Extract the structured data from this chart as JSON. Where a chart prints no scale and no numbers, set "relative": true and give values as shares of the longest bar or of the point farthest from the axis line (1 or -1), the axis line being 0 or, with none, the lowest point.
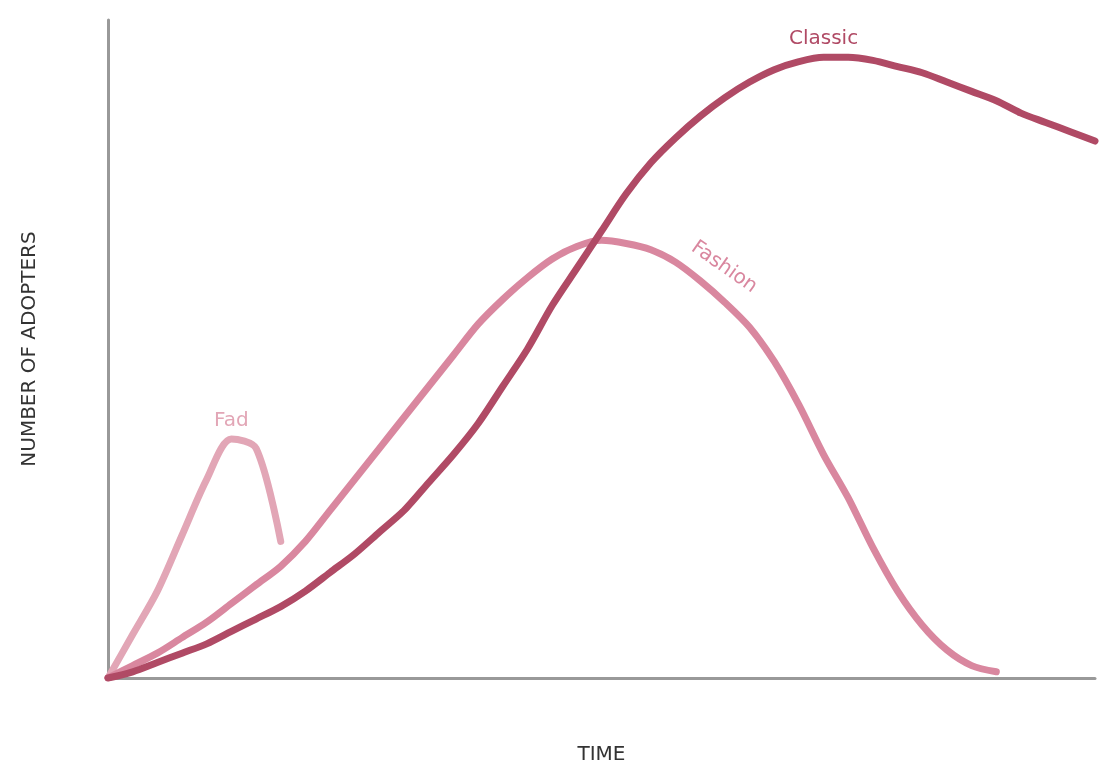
{
  "chart_data": {
    "type": "line",
    "relative": true,
    "xlabel": "TIME",
    "ylabel": "NUMBER OF ADOPTERS",
    "grid": false,
    "legend": false,
    "marker": "none",
    "line_style": "solid",
    "categories": [
      null,
      null,
      null,
      null,
      null,
      null,
      null,
      null,
      null,
      null,
      null,
      null,
      null,
      null,
      null,
      null,
      null,
      null,
      null,
      null,
      null,
      null,
      null,
      null,
      null,
      null,
      null,
      null,
      null,
      null,
      null,
      null,
      null,
      null,
      null,
      null,
      null,
      null,
      null,
      null,
      null
    ],
    "series": [
      {
        "name": "Fad",
        "color": "#e2a6b6",
        "values": [
          0,
          0.07,
          0.14,
          0.23,
          0.32,
          0.385,
          0.37,
          0.22,
          null,
          null,
          null,
          null,
          null,
          null,
          null,
          null,
          null,
          null,
          null,
          null,
          null,
          null,
          null,
          null,
          null,
          null,
          null,
          null,
          null,
          null,
          null,
          null,
          null,
          null,
          null,
          null,
          null,
          null,
          null,
          null,
          null
        ]
      },
      {
        "name": "Fashion",
        "color": "#d9879f",
        "values": [
          0,
          0.02,
          0.04,
          0.065,
          0.09,
          0.12,
          0.15,
          0.18,
          0.22,
          0.27,
          0.32,
          0.37,
          0.42,
          0.47,
          0.52,
          0.57,
          0.61,
          0.645,
          0.675,
          0.695,
          0.705,
          0.7,
          0.69,
          0.67,
          0.64,
          0.605,
          0.565,
          0.51,
          0.44,
          0.36,
          0.29,
          0.21,
          0.14,
          0.085,
          0.045,
          0.02,
          0.01,
          null,
          null,
          null,
          null
        ]
      },
      {
        "name": "Classic",
        "color": "#b04a65",
        "values": [
          0,
          0.01,
          0.025,
          0.04,
          0.055,
          0.075,
          0.095,
          0.115,
          0.14,
          0.17,
          0.2,
          0.235,
          0.27,
          0.315,
          0.36,
          0.41,
          0.47,
          0.53,
          0.6,
          0.66,
          0.72,
          0.78,
          0.83,
          0.87,
          0.905,
          0.935,
          0.96,
          0.98,
          0.993,
          1,
          1,
          0.995,
          0.985,
          0.975,
          0.96,
          0.945,
          0.93,
          0.91,
          0.895,
          0.88,
          0.865
        ]
      }
    ]
  }
}
